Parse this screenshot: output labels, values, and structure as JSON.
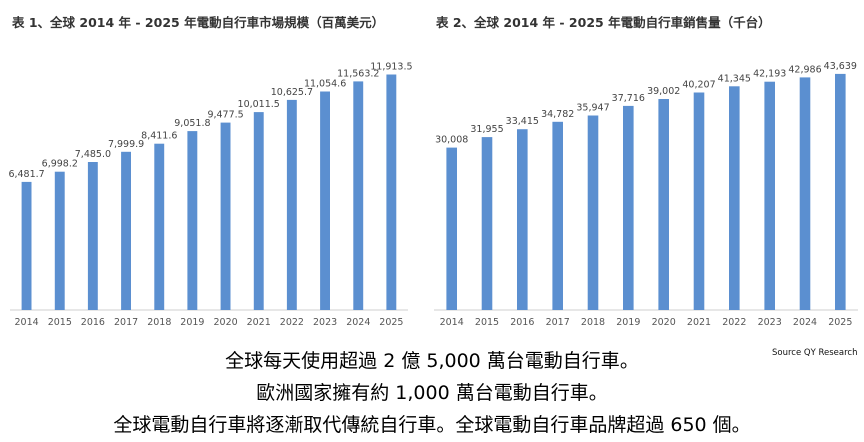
{
  "chart_data": [
    {
      "type": "bar",
      "title": "表 1、全球 2014 年 - 2025 年電動自行車市場規模（百萬美元）",
      "categories": [
        "2014",
        "2015",
        "2016",
        "2017",
        "2018",
        "2019",
        "2020",
        "2021",
        "2022",
        "2023",
        "2024",
        "2025"
      ],
      "values": [
        6481.7,
        6998.2,
        7485.0,
        7999.9,
        8411.6,
        9051.8,
        9477.5,
        10011.5,
        10625.7,
        11054.6,
        11563.2,
        11913.5
      ],
      "value_labels": [
        "6,481.7",
        "6,998.2",
        "7,485.0",
        "7,999.9",
        "8,411.6",
        "9,051.8",
        "9,477.5",
        "10,011.5",
        "10,625.7",
        "11,054.6",
        "11,563.2",
        "11,913.5"
      ],
      "ylim": [
        0,
        13000
      ],
      "color": "#5b8fd0",
      "grid": false,
      "legend": "none"
    },
    {
      "type": "bar",
      "title": "表 2、全球 2014 年 - 2025 年電動自行車銷售量（千台）",
      "categories": [
        "2014",
        "2015",
        "2016",
        "2017",
        "2018",
        "2019",
        "2020",
        "2021",
        "2022",
        "2023",
        "2024",
        "2025"
      ],
      "values": [
        30008,
        31955,
        33415,
        34782,
        35947,
        37716,
        39002,
        40207,
        41345,
        42193,
        42986,
        43639
      ],
      "value_labels": [
        "30,008",
        "31,955",
        "33,415",
        "34,782",
        "35,947",
        "37,716",
        "39,002",
        "40,207",
        "41,345",
        "42,193",
        "42,986",
        "43,639"
      ],
      "ylim": [
        0,
        47500
      ],
      "color": "#5b8fd0",
      "grid": false,
      "legend": "none"
    }
  ],
  "source": "Source QY Research",
  "captions": [
    "全球每天使用超過 2 億 5,000 萬台電動自行車。",
    "歐洲國家擁有約 1,000 萬台電動自行車。",
    "全球電動自行車將逐漸取代傳統自行車。全球電動自行車品牌超過 650 個。"
  ]
}
